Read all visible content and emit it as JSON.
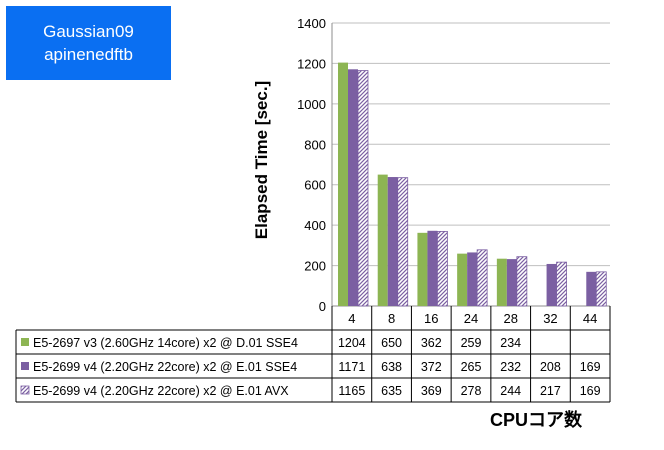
{
  "title_box": {
    "line1": "Gaussian09",
    "line2": "apinenedftb"
  },
  "chart_data": {
    "type": "bar",
    "ylabel": "Elapsed Time [sec.]",
    "xlabel": "CPUコア数",
    "ylim": [
      0,
      1400
    ],
    "yticks": [
      0,
      200,
      400,
      600,
      800,
      1000,
      1200,
      1400
    ],
    "categories": [
      "4",
      "8",
      "16",
      "24",
      "28",
      "32",
      "44"
    ],
    "series": [
      {
        "name": "E5-2697 v3 (2.60GHz 14core) x2 @ D.01 SSE4",
        "color": "#8db553",
        "pattern": "solid",
        "values": [
          1204,
          650,
          362,
          259,
          234,
          null,
          null
        ]
      },
      {
        "name": "E5-2699 v4 (2.20GHz 22core) x2 @ E.01 SSE4",
        "color": "#7b5fa2",
        "pattern": "solid",
        "values": [
          1171,
          638,
          372,
          265,
          232,
          208,
          169
        ]
      },
      {
        "name": "E5-2699 v4 (2.20GHz 22core) x2 @ E.01 AVX",
        "color": "#7b5fa2",
        "pattern": "hatch",
        "values": [
          1165,
          635,
          369,
          278,
          244,
          217,
          169
        ]
      }
    ],
    "grid": true,
    "legend": "data-table"
  }
}
